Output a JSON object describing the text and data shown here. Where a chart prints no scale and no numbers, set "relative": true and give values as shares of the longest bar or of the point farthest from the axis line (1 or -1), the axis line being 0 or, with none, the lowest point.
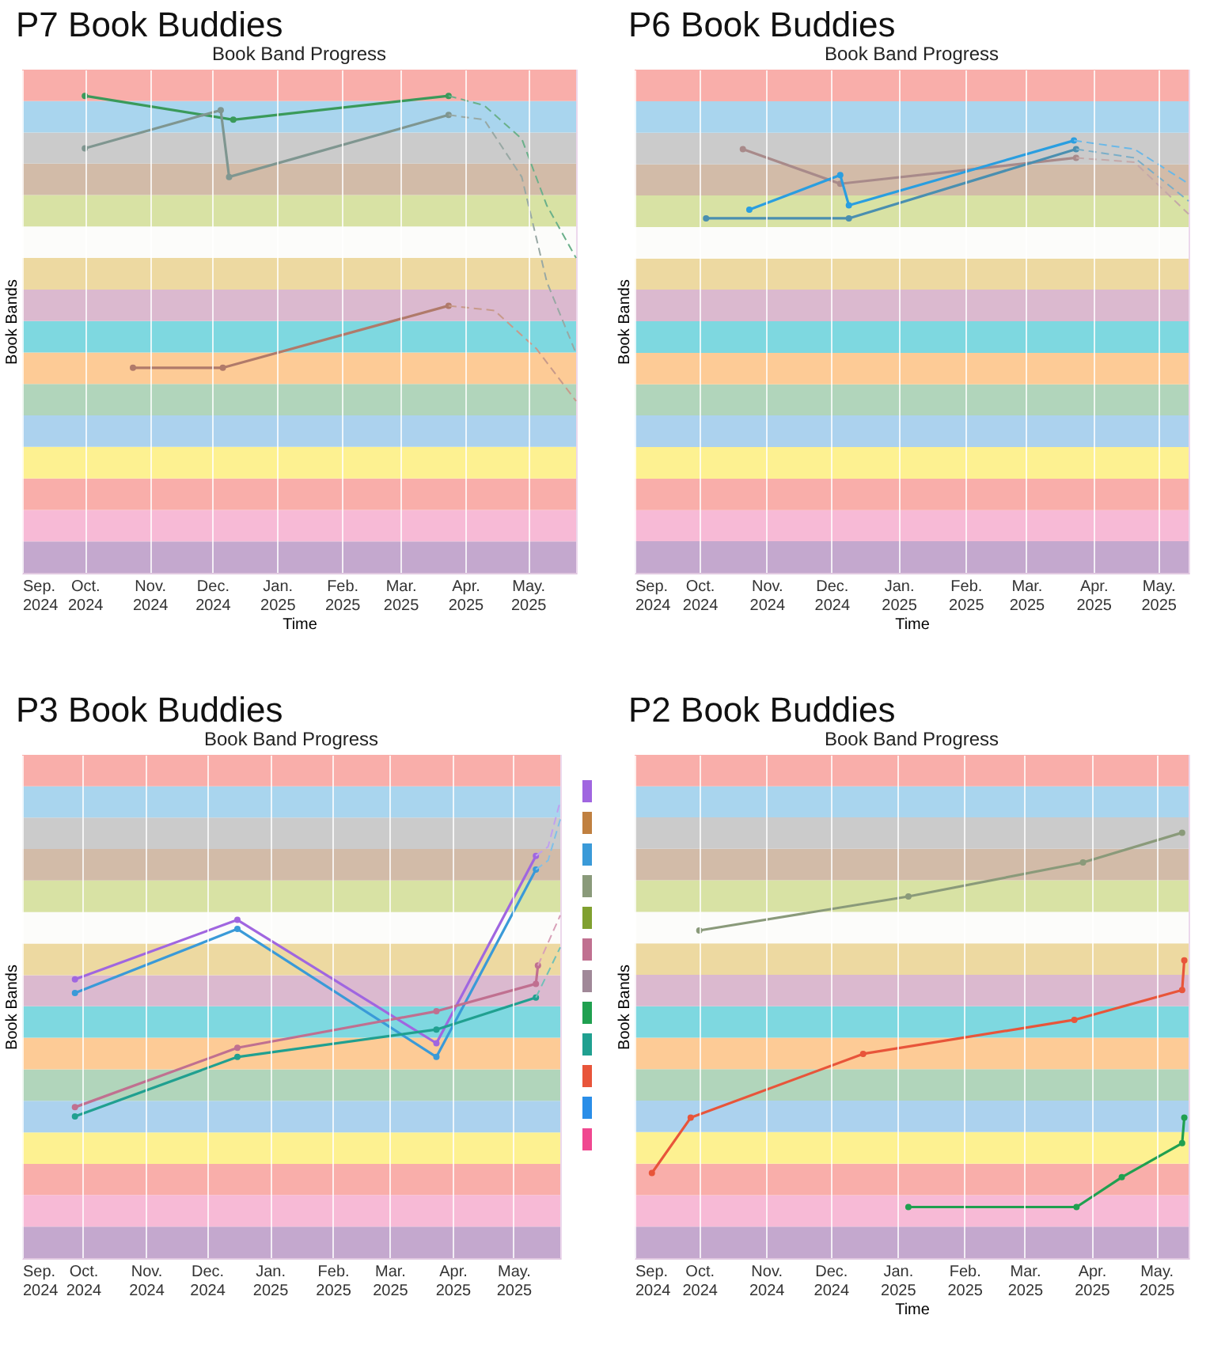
{
  "chart_data": [
    {
      "type": "line",
      "title": "P7 Book Buddies",
      "subtitle": "Book Band Progress",
      "xlabel": "Time",
      "ylabel": "Book Bands",
      "relative": true,
      "marker": "circle",
      "grid": "x",
      "xlim": [
        "2024-09-01",
        "2025-05-24"
      ],
      "xticks": [
        {
          "value": "2024-09-01",
          "label": "Sep. 2024"
        },
        {
          "value": "2024-10-01",
          "label": "Oct. 2024"
        },
        {
          "value": "2024-11-01",
          "label": "Nov. 2024"
        },
        {
          "value": "2024-12-01",
          "label": "Dec. 2024"
        },
        {
          "value": "2025-01-01",
          "label": "Jan. 2025"
        },
        {
          "value": "2025-02-01",
          "label": "Feb. 2025"
        },
        {
          "value": "2025-03-01",
          "label": "Mar. 2025"
        },
        {
          "value": "2025-04-01",
          "label": "Apr. 2025"
        },
        {
          "value": "2025-05-01",
          "label": "May. 2025"
        }
      ],
      "bands": [
        {
          "axis": "y",
          "from": 0,
          "to": 0.066,
          "color": "#c4a8ce"
        },
        {
          "axis": "y",
          "from": 0.066,
          "to": 0.132,
          "color": "#f7bad6"
        },
        {
          "axis": "y",
          "from": 0.132,
          "to": 0.198,
          "color": "#f9aeaa"
        },
        {
          "axis": "y",
          "from": 0.198,
          "to": 0.264,
          "color": "#fdf191"
        },
        {
          "axis": "y",
          "from": 0.264,
          "to": 0.33,
          "color": "#acd2ee"
        },
        {
          "axis": "y",
          "from": 0.33,
          "to": 0.396,
          "color": "#b1d5bb"
        },
        {
          "axis": "y",
          "from": 0.396,
          "to": 0.462,
          "color": "#fdcb96"
        },
        {
          "axis": "y",
          "from": 0.462,
          "to": 0.528,
          "color": "#7ed8e0"
        },
        {
          "axis": "y",
          "from": 0.528,
          "to": 0.594,
          "color": "#dbb9cf"
        },
        {
          "axis": "y",
          "from": 0.594,
          "to": 0.66,
          "color": "#edd9a1"
        },
        {
          "axis": "y",
          "from": 0.66,
          "to": 0.726,
          "color": "#fcfcfa"
        },
        {
          "axis": "y",
          "from": 0.726,
          "to": 0.792,
          "color": "#d8e2a4"
        },
        {
          "axis": "y",
          "from": 0.792,
          "to": 0.858,
          "color": "#d2bba8"
        },
        {
          "axis": "y",
          "from": 0.858,
          "to": 0.923,
          "color": "#cbcbcb"
        },
        {
          "axis": "y",
          "from": 0.923,
          "to": 0.989,
          "color": "#a9d5ee"
        },
        {
          "axis": "y",
          "from": 0.989,
          "to": 1.055,
          "color": "#f9aeaa"
        }
      ],
      "series": [
        {
          "color": "#3a9a5a",
          "x": [
            "2024-10-01",
            "2024-12-11",
            "2025-03-24"
          ],
          "values": [
            1,
            0.95,
            1
          ]
        },
        {
          "color": "#7f9690",
          "x": [
            "2024-10-01",
            "2024-12-05",
            "2024-12-09",
            "2025-03-24"
          ],
          "values": [
            0.89,
            0.97,
            0.83,
            0.96
          ]
        },
        {
          "color": "#b07a6a",
          "x": [
            "2024-10-24",
            "2024-12-06",
            "2025-03-24"
          ],
          "values": [
            0.43,
            0.43,
            0.56
          ]
        },
        {
          "color": "#6ab08a",
          "line_style": "dashed",
          "marker": "none",
          "x": [
            "2025-03-24",
            "2025-04-10",
            "2025-04-28",
            "2025-05-10",
            "2025-05-24"
          ],
          "values": [
            1,
            0.98,
            0.91,
            0.77,
            0.66
          ]
        },
        {
          "color": "#98a8a4",
          "line_style": "dashed",
          "marker": "none",
          "x": [
            "2025-03-24",
            "2025-04-10",
            "2025-04-28",
            "2025-05-10",
            "2025-05-24"
          ],
          "values": [
            0.96,
            0.95,
            0.83,
            0.61,
            0.46
          ]
        },
        {
          "color": "#c89a8a",
          "line_style": "dashed",
          "marker": "none",
          "x": [
            "2025-03-24",
            "2025-04-15",
            "2025-05-05",
            "2025-05-24"
          ],
          "values": [
            0.56,
            0.55,
            0.47,
            0.36
          ]
        }
      ]
    },
    {
      "type": "line",
      "title": "P6 Book Buddies",
      "subtitle": "Book Band Progress",
      "xlabel": "Time",
      "ylabel": "Book Bands",
      "relative": true,
      "marker": "circle",
      "grid": "x",
      "xlim": [
        "2024-09-01",
        "2025-05-15"
      ],
      "xticks": [
        {
          "value": "2024-09-01",
          "label": "Sep. 2024"
        },
        {
          "value": "2024-10-01",
          "label": "Oct. 2024"
        },
        {
          "value": "2024-11-01",
          "label": "Nov. 2024"
        },
        {
          "value": "2024-12-01",
          "label": "Dec. 2024"
        },
        {
          "value": "2025-01-01",
          "label": "Jan. 2025"
        },
        {
          "value": "2025-02-01",
          "label": "Feb. 2025"
        },
        {
          "value": "2025-03-01",
          "label": "Mar. 2025"
        },
        {
          "value": "2025-04-01",
          "label": "Apr. 2025"
        },
        {
          "value": "2025-05-01",
          "label": "May. 2025"
        }
      ],
      "bands": [
        {
          "axis": "y",
          "from": 0,
          "to": 0.073,
          "color": "#c4a8ce"
        },
        {
          "axis": "y",
          "from": 0.073,
          "to": 0.145,
          "color": "#f7bad6"
        },
        {
          "axis": "y",
          "from": 0.145,
          "to": 0.218,
          "color": "#f9aeaa"
        },
        {
          "axis": "y",
          "from": 0.218,
          "to": 0.291,
          "color": "#fdf191"
        },
        {
          "axis": "y",
          "from": 0.291,
          "to": 0.364,
          "color": "#acd2ee"
        },
        {
          "axis": "y",
          "from": 0.364,
          "to": 0.436,
          "color": "#b1d5bb"
        },
        {
          "axis": "y",
          "from": 0.436,
          "to": 0.509,
          "color": "#fdcb96"
        },
        {
          "axis": "y",
          "from": 0.509,
          "to": 0.582,
          "color": "#7ed8e0"
        },
        {
          "axis": "y",
          "from": 0.582,
          "to": 0.655,
          "color": "#dbb9cf"
        },
        {
          "axis": "y",
          "from": 0.655,
          "to": 0.727,
          "color": "#edd9a1"
        },
        {
          "axis": "y",
          "from": 0.727,
          "to": 0.8,
          "color": "#fcfcfa"
        },
        {
          "axis": "y",
          "from": 0.8,
          "to": 0.873,
          "color": "#d8e2a4"
        },
        {
          "axis": "y",
          "from": 0.873,
          "to": 0.945,
          "color": "#d2bba8"
        },
        {
          "axis": "y",
          "from": 0.945,
          "to": 1.018,
          "color": "#cbcbcb"
        },
        {
          "axis": "y",
          "from": 1.018,
          "to": 1.091,
          "color": "#a9d5ee"
        },
        {
          "axis": "y",
          "from": 1.091,
          "to": 1.164,
          "color": "#f9aeaa"
        }
      ],
      "series": [
        {
          "color": "#a88a8a",
          "x": [
            "2024-10-21",
            "2024-12-05",
            "2025-03-24"
          ],
          "values": [
            0.98,
            0.9,
            0.96
          ]
        },
        {
          "color": "#2a9ee0",
          "x": [
            "2024-10-24",
            "2024-12-05",
            "2024-12-09",
            "2025-03-23"
          ],
          "values": [
            0.84,
            0.92,
            0.85,
            1
          ]
        },
        {
          "color": "#4a8fb0",
          "x": [
            "2024-10-04",
            "2024-12-09",
            "2025-03-24"
          ],
          "values": [
            0.82,
            0.82,
            0.98
          ]
        },
        {
          "color": "#6ab8e8",
          "line_style": "dashed",
          "marker": "none",
          "x": [
            "2025-03-23",
            "2025-04-20",
            "2025-05-15"
          ],
          "values": [
            1,
            0.98,
            0.9
          ]
        },
        {
          "color": "#7aaec8",
          "line_style": "dashed",
          "marker": "none",
          "x": [
            "2025-03-24",
            "2025-04-20",
            "2025-05-15"
          ],
          "values": [
            0.98,
            0.96,
            0.86
          ]
        },
        {
          "color": "#c4a8a8",
          "line_style": "dashed",
          "marker": "none",
          "x": [
            "2025-03-24",
            "2025-04-20",
            "2025-05-15"
          ],
          "values": [
            0.96,
            0.95,
            0.83
          ]
        }
      ]
    },
    {
      "type": "line",
      "title": "P3 Book Buddies",
      "subtitle": "Book Band Progress",
      "ylabel": "Book Bands",
      "relative": true,
      "marker": "circle",
      "grid": "x",
      "xlim": [
        "2024-09-01",
        "2025-05-24"
      ],
      "xticks": [
        {
          "value": "2024-09-01",
          "label": "Sep. 2024"
        },
        {
          "value": "2024-10-01",
          "label": "Oct. 2024"
        },
        {
          "value": "2024-11-01",
          "label": "Nov. 2024"
        },
        {
          "value": "2024-12-01",
          "label": "Dec. 2024"
        },
        {
          "value": "2025-01-01",
          "label": "Jan. 2025"
        },
        {
          "value": "2025-02-01",
          "label": "Feb. 2025"
        },
        {
          "value": "2025-03-01",
          "label": "Mar. 2025"
        },
        {
          "value": "2025-04-01",
          "label": "Apr. 2025"
        },
        {
          "value": "2025-05-01",
          "label": "May. 2025"
        }
      ],
      "bands": [
        {
          "axis": "y",
          "from": 0,
          "to": 0.069,
          "color": "#c4a8ce"
        },
        {
          "axis": "y",
          "from": 0.069,
          "to": 0.138,
          "color": "#f7bad6"
        },
        {
          "axis": "y",
          "from": 0.138,
          "to": 0.206,
          "color": "#f9aeaa"
        },
        {
          "axis": "y",
          "from": 0.206,
          "to": 0.275,
          "color": "#fdf191"
        },
        {
          "axis": "y",
          "from": 0.275,
          "to": 0.344,
          "color": "#acd2ee"
        },
        {
          "axis": "y",
          "from": 0.344,
          "to": 0.413,
          "color": "#b1d5bb"
        },
        {
          "axis": "y",
          "from": 0.413,
          "to": 0.482,
          "color": "#fdcb96"
        },
        {
          "axis": "y",
          "from": 0.482,
          "to": 0.551,
          "color": "#7ed8e0"
        },
        {
          "axis": "y",
          "from": 0.551,
          "to": 0.619,
          "color": "#dbb9cf"
        },
        {
          "axis": "y",
          "from": 0.619,
          "to": 0.688,
          "color": "#edd9a1"
        },
        {
          "axis": "y",
          "from": 0.688,
          "to": 0.757,
          "color": "#fcfcfa"
        },
        {
          "axis": "y",
          "from": 0.757,
          "to": 0.826,
          "color": "#d8e2a4"
        },
        {
          "axis": "y",
          "from": 0.826,
          "to": 0.895,
          "color": "#d2bba8"
        },
        {
          "axis": "y",
          "from": 0.895,
          "to": 0.964,
          "color": "#cbcbcb"
        },
        {
          "axis": "y",
          "from": 0.964,
          "to": 1.032,
          "color": "#a9d5ee"
        },
        {
          "axis": "y",
          "from": 1.032,
          "to": 1.101,
          "color": "#f9aeaa"
        }
      ],
      "series": [
        {
          "color": "#a066e0",
          "x": [
            "2024-09-27",
            "2024-12-16",
            "2025-03-24",
            "2025-05-12"
          ],
          "values": [
            0.61,
            0.74,
            0.47,
            0.88
          ]
        },
        {
          "color": "#3a9ad8",
          "x": [
            "2024-09-27",
            "2024-12-16",
            "2025-03-24",
            "2025-05-12"
          ],
          "values": [
            0.58,
            0.72,
            0.44,
            0.85
          ]
        },
        {
          "color": "#c07090",
          "x": [
            "2024-09-27",
            "2024-12-16",
            "2025-03-24",
            "2025-05-12",
            "2025-05-13"
          ],
          "values": [
            0.33,
            0.46,
            0.54,
            0.6,
            0.64
          ]
        },
        {
          "color": "#20a090",
          "x": [
            "2024-09-27",
            "2024-12-16",
            "2025-03-24",
            "2025-05-12"
          ],
          "values": [
            0.31,
            0.44,
            0.5,
            0.57
          ]
        },
        {
          "color": "#c0a0f0",
          "line_style": "dashed",
          "marker": "none",
          "x": [
            "2025-05-12",
            "2025-05-18",
            "2025-05-24"
          ],
          "values": [
            0.88,
            0.9,
            1
          ]
        },
        {
          "color": "#80c0e8",
          "line_style": "dashed",
          "marker": "none",
          "x": [
            "2025-05-12",
            "2025-05-18",
            "2025-05-24"
          ],
          "values": [
            0.85,
            0.87,
            0.96
          ]
        },
        {
          "color": "#d8a0b8",
          "line_style": "dashed",
          "marker": "none",
          "x": [
            "2025-05-13",
            "2025-05-24"
          ],
          "values": [
            0.64,
            0.75
          ]
        },
        {
          "color": "#70c0b8",
          "line_style": "dashed",
          "marker": "none",
          "x": [
            "2025-05-12",
            "2025-05-24"
          ],
          "values": [
            0.57,
            0.68
          ]
        }
      ]
    },
    {
      "type": "line",
      "title": "P2 Book Buddies",
      "subtitle": "Book Band Progress",
      "xlabel": "Time",
      "ylabel": "Book Bands",
      "relative": true,
      "marker": "circle",
      "grid": "x",
      "xlim": [
        "2024-09-01",
        "2025-05-16"
      ],
      "xticks": [
        {
          "value": "2024-09-01",
          "label": "Sep. 2024"
        },
        {
          "value": "2024-10-01",
          "label": "Oct. 2024"
        },
        {
          "value": "2024-11-01",
          "label": "Nov. 2024"
        },
        {
          "value": "2024-12-01",
          "label": "Dec. 2024"
        },
        {
          "value": "2025-01-01",
          "label": "Jan. 2025"
        },
        {
          "value": "2025-02-01",
          "label": "Feb. 2025"
        },
        {
          "value": "2025-03-01",
          "label": "Mar. 2025"
        },
        {
          "value": "2025-04-01",
          "label": "Apr. 2025"
        },
        {
          "value": "2025-05-01",
          "label": "May. 2025"
        }
      ],
      "bands": [
        {
          "axis": "y",
          "from": 0,
          "to": 0.074,
          "color": "#c4a8ce"
        },
        {
          "axis": "y",
          "from": 0.074,
          "to": 0.148,
          "color": "#f7bad6"
        },
        {
          "axis": "y",
          "from": 0.148,
          "to": 0.222,
          "color": "#f9aeaa"
        },
        {
          "axis": "y",
          "from": 0.222,
          "to": 0.296,
          "color": "#fdf191"
        },
        {
          "axis": "y",
          "from": 0.296,
          "to": 0.37,
          "color": "#acd2ee"
        },
        {
          "axis": "y",
          "from": 0.37,
          "to": 0.444,
          "color": "#b1d5bb"
        },
        {
          "axis": "y",
          "from": 0.444,
          "to": 0.518,
          "color": "#fdcb96"
        },
        {
          "axis": "y",
          "from": 0.518,
          "to": 0.592,
          "color": "#7ed8e0"
        },
        {
          "axis": "y",
          "from": 0.592,
          "to": 0.666,
          "color": "#dbb9cf"
        },
        {
          "axis": "y",
          "from": 0.666,
          "to": 0.74,
          "color": "#edd9a1"
        },
        {
          "axis": "y",
          "from": 0.74,
          "to": 0.814,
          "color": "#fcfcfa"
        },
        {
          "axis": "y",
          "from": 0.814,
          "to": 0.888,
          "color": "#d8e2a4"
        },
        {
          "axis": "y",
          "from": 0.888,
          "to": 0.962,
          "color": "#d2bba8"
        },
        {
          "axis": "y",
          "from": 0.962,
          "to": 1.036,
          "color": "#cbcbcb"
        },
        {
          "axis": "y",
          "from": 1.036,
          "to": 1.109,
          "color": "#a9d5ee"
        },
        {
          "axis": "y",
          "from": 1.109,
          "to": 1.183,
          "color": "#f9aeaa"
        }
      ],
      "series": [
        {
          "color": "#8a9a7a",
          "x": [
            "2024-10-01",
            "2025-01-06",
            "2025-03-28",
            "2025-05-13"
          ],
          "values": [
            0.77,
            0.85,
            0.93,
            1
          ]
        },
        {
          "color": "#e8553a",
          "x": [
            "2024-09-09",
            "2024-09-27",
            "2024-12-16",
            "2025-03-24",
            "2025-05-13",
            "2025-05-14"
          ],
          "values": [
            0.2,
            0.33,
            0.48,
            0.56,
            0.63,
            0.7
          ]
        },
        {
          "color": "#20a050",
          "x": [
            "2025-01-06",
            "2025-03-25",
            "2025-04-15",
            "2025-05-13",
            "2025-05-14"
          ],
          "values": [
            0.12,
            0.12,
            0.19,
            0.27,
            0.33
          ]
        }
      ]
    }
  ]
}
